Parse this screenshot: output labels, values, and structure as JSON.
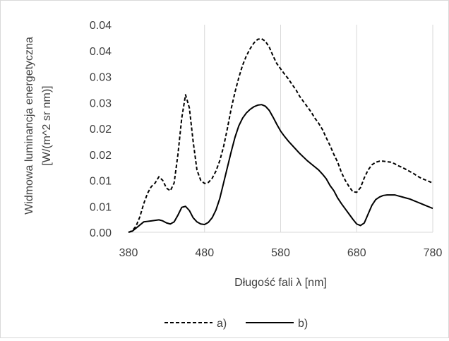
{
  "chart_data": {
    "type": "line",
    "title": "",
    "xlabel": "Długość fali λ [nm]",
    "ylabel_lines": [
      "Widmowa luminancja energetyczna",
      "[W/(m^2 sr nm)]"
    ],
    "xlim": [
      380,
      780
    ],
    "ylim": [
      0,
      0.04
    ],
    "x_tick_labels": [
      "380",
      "480",
      "580",
      "680",
      "780"
    ],
    "x_tick_values": [
      380,
      480,
      580,
      680,
      780
    ],
    "y_tick_labels": [
      "0.00",
      "0.01",
      "0.01",
      "0.02",
      "0.02",
      "0.03",
      "0.03",
      "0.04"
    ],
    "y_tick_values": [
      0,
      0.005,
      0.01,
      0.015,
      0.02,
      0.025,
      0.03,
      0.035,
      0.04
    ],
    "y_tick_labels_full": [
      "0.00",
      "0.01",
      "0.01",
      "0.02",
      "0.02",
      "0.03",
      "0.03",
      "0.04",
      "0.04"
    ],
    "grid": "vertical",
    "legend_position": "bottom",
    "series": [
      {
        "name": "a)",
        "style": "dashed",
        "color": "#000000",
        "x": [
          380,
          385,
          390,
          395,
          400,
          405,
          410,
          415,
          420,
          425,
          430,
          435,
          440,
          445,
          450,
          455,
          460,
          465,
          470,
          475,
          480,
          485,
          490,
          495,
          500,
          505,
          510,
          515,
          520,
          525,
          530,
          535,
          540,
          545,
          550,
          555,
          560,
          565,
          570,
          575,
          580,
          585,
          590,
          595,
          600,
          605,
          610,
          615,
          620,
          625,
          630,
          635,
          640,
          645,
          650,
          655,
          660,
          665,
          670,
          675,
          680,
          685,
          690,
          695,
          700,
          705,
          710,
          715,
          720,
          725,
          730,
          735,
          740,
          745,
          750,
          755,
          760,
          765,
          770,
          775,
          780
        ],
        "y": [
          0.0,
          0.0003,
          0.0012,
          0.003,
          0.0055,
          0.0075,
          0.0088,
          0.0095,
          0.0107,
          0.01,
          0.0085,
          0.008,
          0.0095,
          0.015,
          0.022,
          0.0265,
          0.024,
          0.0175,
          0.012,
          0.01,
          0.0094,
          0.0096,
          0.0104,
          0.0118,
          0.0138,
          0.0165,
          0.02,
          0.0238,
          0.027,
          0.0298,
          0.0322,
          0.034,
          0.0354,
          0.0365,
          0.0372,
          0.0373,
          0.0368,
          0.0357,
          0.034,
          0.0325,
          0.0315,
          0.0305,
          0.0296,
          0.0285,
          0.0275,
          0.0262,
          0.0252,
          0.0242,
          0.0232,
          0.022,
          0.021,
          0.0198,
          0.0182,
          0.0167,
          0.015,
          0.0135,
          0.0115,
          0.01,
          0.0088,
          0.0078,
          0.0077,
          0.0086,
          0.0105,
          0.012,
          0.013,
          0.0135,
          0.0137,
          0.0137,
          0.0136,
          0.0135,
          0.0132,
          0.0128,
          0.0125,
          0.0121,
          0.0117,
          0.0113,
          0.0108,
          0.0104,
          0.0101,
          0.0098,
          0.0095
        ]
      },
      {
        "name": "b)",
        "style": "solid",
        "color": "#000000",
        "x": [
          380,
          385,
          390,
          395,
          400,
          405,
          410,
          415,
          420,
          425,
          430,
          435,
          440,
          445,
          450,
          455,
          460,
          465,
          470,
          475,
          480,
          485,
          490,
          495,
          500,
          505,
          510,
          515,
          520,
          525,
          530,
          535,
          540,
          545,
          550,
          555,
          560,
          565,
          570,
          575,
          580,
          585,
          590,
          595,
          600,
          605,
          610,
          615,
          620,
          625,
          630,
          635,
          640,
          645,
          650,
          655,
          660,
          665,
          670,
          675,
          680,
          685,
          690,
          695,
          700,
          705,
          710,
          715,
          720,
          725,
          730,
          735,
          740,
          745,
          750,
          755,
          760,
          765,
          770,
          775,
          780
        ],
        "y": [
          0.0,
          0.0002,
          0.0008,
          0.0014,
          0.002,
          0.0021,
          0.0022,
          0.0023,
          0.0024,
          0.0022,
          0.0018,
          0.0016,
          0.002,
          0.0033,
          0.0048,
          0.005,
          0.0042,
          0.0028,
          0.002,
          0.0016,
          0.0015,
          0.0019,
          0.0028,
          0.0043,
          0.0065,
          0.0095,
          0.0125,
          0.0155,
          0.0183,
          0.0205,
          0.022,
          0.023,
          0.0237,
          0.0242,
          0.0245,
          0.0246,
          0.0243,
          0.0235,
          0.0222,
          0.0208,
          0.0195,
          0.0185,
          0.0176,
          0.0168,
          0.016,
          0.0152,
          0.0145,
          0.0138,
          0.0132,
          0.0126,
          0.012,
          0.0112,
          0.0103,
          0.009,
          0.008,
          0.0066,
          0.0055,
          0.0045,
          0.0035,
          0.0025,
          0.0016,
          0.0013,
          0.0018,
          0.0035,
          0.0052,
          0.0063,
          0.0068,
          0.0071,
          0.0072,
          0.0072,
          0.0072,
          0.007,
          0.0068,
          0.0066,
          0.0064,
          0.0061,
          0.0058,
          0.0055,
          0.0052,
          0.0049,
          0.0046
        ]
      }
    ]
  }
}
